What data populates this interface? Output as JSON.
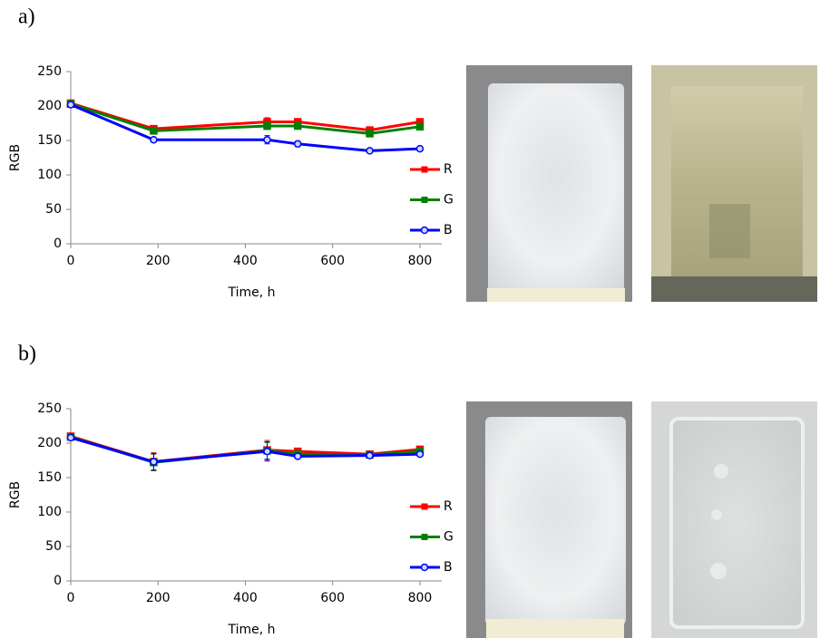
{
  "chart_data": [
    {
      "type": "line",
      "panel": "a)",
      "xlabel": "Time, h",
      "ylabel": "RGB",
      "x": [
        0,
        190,
        450,
        520,
        685,
        800
      ],
      "xlim": [
        0,
        850
      ],
      "xticks": [
        0,
        200,
        400,
        600,
        800
      ],
      "ylim": [
        0,
        250
      ],
      "yticks": [
        0,
        50,
        100,
        150,
        200,
        250
      ],
      "legend": "right",
      "series": [
        {
          "name": "R",
          "color": "#ff0000",
          "marker": "square",
          "values": [
            204,
            167,
            177,
            177,
            165,
            177
          ],
          "errors": [
            2,
            3,
            6,
            3,
            3,
            3
          ]
        },
        {
          "name": "G",
          "color": "#008000",
          "marker": "square",
          "values": [
            203,
            164,
            171,
            171,
            160,
            170
          ],
          "errors": [
            2,
            2,
            5,
            2,
            2,
            2
          ]
        },
        {
          "name": "B",
          "color": "#0000ff",
          "marker": "circle",
          "values": [
            202,
            151,
            151,
            145,
            135,
            138
          ],
          "errors": [
            2,
            2,
            6,
            4,
            3,
            2
          ]
        }
      ]
    },
    {
      "type": "line",
      "panel": "b)",
      "xlabel": "Time, h",
      "ylabel": "RGB",
      "x": [
        0,
        190,
        450,
        520,
        685,
        800
      ],
      "xlim": [
        0,
        850
      ],
      "xticks": [
        0,
        200,
        400,
        600,
        800
      ],
      "ylim": [
        0,
        250
      ],
      "yticks": [
        0,
        50,
        100,
        150,
        200,
        250
      ],
      "legend": "right",
      "series": [
        {
          "name": "R",
          "color": "#ff0000",
          "marker": "square",
          "values": [
            210,
            173,
            190,
            188,
            184,
            191
          ],
          "errors": [
            3,
            13,
            14,
            3,
            2,
            2
          ]
        },
        {
          "name": "G",
          "color": "#008000",
          "marker": "square",
          "values": [
            209,
            172,
            189,
            184,
            183,
            188
          ],
          "errors": [
            3,
            12,
            12,
            3,
            2,
            2
          ]
        },
        {
          "name": "B",
          "color": "#0000ff",
          "marker": "circle",
          "values": [
            208,
            173,
            188,
            181,
            182,
            184
          ],
          "errors": [
            3,
            12,
            14,
            3,
            2,
            3
          ]
        }
      ]
    }
  ]
}
